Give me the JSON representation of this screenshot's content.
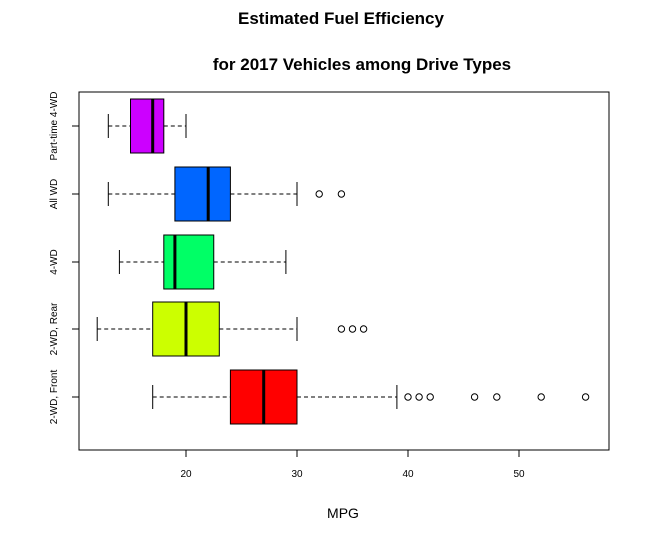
{
  "chart_data": {
    "type": "boxplot",
    "orientation": "horizontal",
    "title_line1": "Estimated Fuel Efficiency",
    "title_line2": "for 2017 Vehicles among Drive Types",
    "xlabel": "MPG",
    "ylabel": "",
    "xlim": [
      10,
      58
    ],
    "xticks": [
      20,
      30,
      40,
      50
    ],
    "grid": false,
    "series": [
      {
        "name": "2-WD, Front",
        "color": "#ff0000",
        "whisker_low": 17,
        "q1": 24,
        "median": 27,
        "q3": 30,
        "whisker_high": 39,
        "outliers": [
          40,
          41,
          42,
          46,
          48,
          52,
          56
        ]
      },
      {
        "name": "2-WD, Rear",
        "color": "#ccff00",
        "whisker_low": 12,
        "q1": 17,
        "median": 20,
        "q3": 23,
        "whisker_high": 30,
        "outliers": [
          34,
          35,
          36
        ]
      },
      {
        "name": "4-WD",
        "color": "#00ff66",
        "whisker_low": 14,
        "q1": 18,
        "median": 19,
        "q3": 22.5,
        "whisker_high": 29,
        "outliers": []
      },
      {
        "name": "All WD",
        "color": "#0066ff",
        "whisker_low": 13,
        "q1": 19,
        "median": 22,
        "q3": 24,
        "whisker_high": 30,
        "outliers": [
          32,
          34
        ]
      },
      {
        "name": "Part-time 4-WD",
        "color": "#cc00ff",
        "whisker_low": 13,
        "q1": 15,
        "median": 17,
        "q3": 18,
        "whisker_high": 20,
        "outliers": []
      }
    ]
  }
}
